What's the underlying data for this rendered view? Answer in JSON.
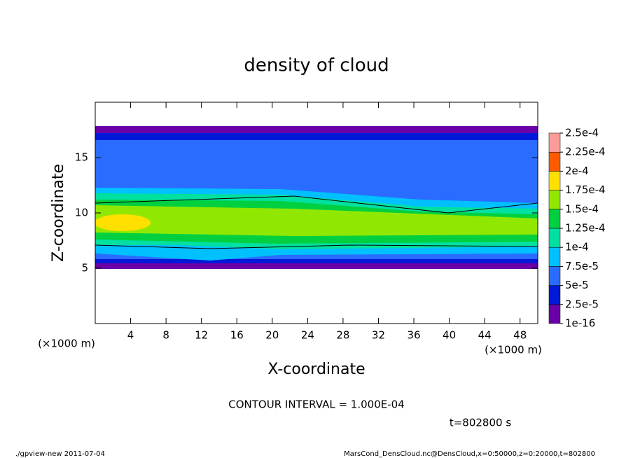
{
  "chart_data": {
    "type": "contour",
    "title": "density of cloud",
    "x_label": "X-coordinate",
    "y_label": "Z-coordinate",
    "x_unit_label": "(×1000 m)",
    "xlim": [
      0,
      50
    ],
    "ylim": [
      0,
      20
    ],
    "xticks": [
      4,
      8,
      12,
      16,
      20,
      24,
      28,
      32,
      36,
      40,
      44,
      48
    ],
    "yticks": [
      5,
      10,
      15
    ],
    "contour_interval_text": "CONTOUR INTERVAL = 1.000E-04",
    "time_text": "t=802800 s",
    "colorbar": {
      "levels": [
        {
          "value": 1e-16,
          "label": "1e-16"
        },
        {
          "value": 2.5e-05,
          "label": "2.5e-5"
        },
        {
          "value": 5e-05,
          "label": "5e-5"
        },
        {
          "value": 7.5e-05,
          "label": "7.5e-5"
        },
        {
          "value": 0.0001,
          "label": "1e-4"
        },
        {
          "value": 0.000125,
          "label": "1.25e-4"
        },
        {
          "value": 0.00015,
          "label": "1.5e-4"
        },
        {
          "value": 0.000175,
          "label": "1.75e-4"
        },
        {
          "value": 0.0002,
          "label": "2e-4"
        },
        {
          "value": 0.000225,
          "label": "2.25e-4"
        },
        {
          "value": 0.00025,
          "label": "2.5e-4"
        }
      ],
      "colors": [
        "#6a00a8",
        "#0018d8",
        "#2a6cff",
        "#00c0ff",
        "#00e0a0",
        "#00d040",
        "#90e800",
        "#ffe000",
        "#ff5a00",
        "#ff9a9a"
      ]
    },
    "footer_left": "./gpview-new  2011-07-04",
    "footer_right": "MarsCond_DensCloud.nc@DensCloud,x=0:50000,z=0:20000,t=802800"
  }
}
